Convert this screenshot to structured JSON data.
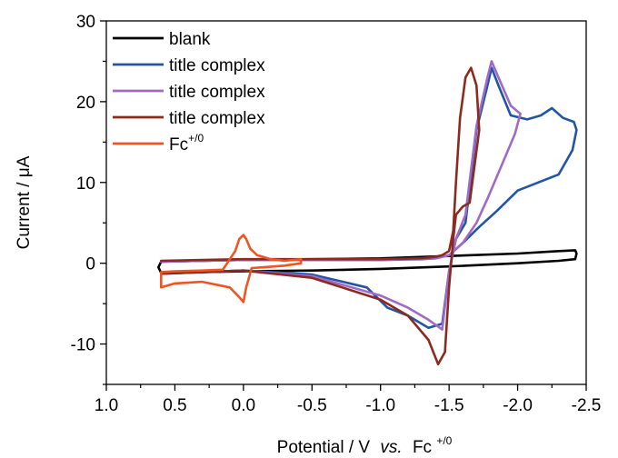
{
  "chart_data": {
    "type": "line",
    "xlabel": "Potential / V",
    "xlabel_italic": "vs.",
    "xlabel_ref": "Fc",
    "xlabel_ref_sup": "+/0",
    "ylabel": "Current / μA",
    "xlim": [
      1.0,
      -2.5
    ],
    "ylim": [
      -15,
      30
    ],
    "x_ticks": [
      1.0,
      0.5,
      0.0,
      -0.5,
      -1.0,
      -1.5,
      -2.0,
      -2.5
    ],
    "x_tick_labels": [
      "1.0",
      "0.5",
      "0.0",
      "-0.5",
      "-1.0",
      "-1.5",
      "-2.0",
      "-2.5"
    ],
    "y_ticks": [
      -10,
      0,
      10,
      20,
      30
    ],
    "y_tick_labels": [
      "-10",
      "0",
      "10",
      "20",
      "30"
    ],
    "grid": false,
    "legend_position": "top-left",
    "series": [
      {
        "name": "blank",
        "color": "#000000",
        "x": [
          0.6,
          0.3,
          0.0,
          -0.5,
          -1.0,
          -1.5,
          -2.0,
          -2.3,
          -2.42,
          -2.43,
          -2.42,
          -2.3,
          -2.0,
          -1.5,
          -1.0,
          -0.5,
          0.0,
          0.3,
          0.6,
          0.62,
          0.6
        ],
        "y": [
          -1.2,
          -1.1,
          -1.0,
          -0.9,
          -0.7,
          -0.4,
          0.0,
          0.3,
          0.5,
          1.2,
          1.6,
          1.5,
          1.2,
          0.9,
          0.6,
          0.5,
          0.4,
          0.3,
          0.2,
          -0.5,
          -1.2
        ]
      },
      {
        "name": "title complex",
        "color": "#2255a4",
        "x": [
          0.6,
          0.3,
          0.0,
          -0.5,
          -0.9,
          -1.05,
          -1.2,
          -1.35,
          -1.45,
          -1.5,
          -1.55,
          -1.62,
          -1.7,
          -1.78,
          -1.81,
          -1.86,
          -1.95,
          -2.07,
          -2.17,
          -2.25,
          -2.33,
          -2.41,
          -2.43,
          -2.4,
          -2.3,
          -2.15,
          -2.0,
          -1.85,
          -1.72,
          -1.6,
          -1.5,
          -1.45,
          -1.4,
          -1.3,
          -1.0,
          -0.5,
          0.0,
          0.3,
          0.6
        ],
        "y": [
          -1.3,
          -1.1,
          -0.9,
          -1.4,
          -3.0,
          -5.5,
          -6.5,
          -8.0,
          -7.5,
          -1.0,
          3.0,
          5.0,
          16.5,
          22.0,
          24.2,
          22.0,
          18.3,
          17.8,
          18.3,
          19.2,
          18.0,
          17.5,
          16.5,
          14.0,
          11.0,
          10.0,
          9.0,
          6.5,
          4.5,
          2.5,
          1.0,
          0.8,
          0.6,
          0.5,
          0.4,
          0.4,
          0.4,
          0.3,
          0.2
        ]
      },
      {
        "name": "title complex",
        "color": "#a06bc6",
        "x": [
          0.6,
          0.3,
          0.0,
          -0.5,
          -1.0,
          -1.2,
          -1.35,
          -1.45,
          -1.5,
          -1.55,
          -1.62,
          -1.7,
          -1.78,
          -1.81,
          -1.86,
          -1.95,
          -2.02,
          -1.98,
          -1.88,
          -1.78,
          -1.7,
          -1.6,
          -1.5,
          -1.4,
          -1.0,
          -0.5,
          0.0,
          0.3,
          0.6
        ],
        "y": [
          -1.3,
          -1.1,
          -0.9,
          -1.6,
          -4.0,
          -5.5,
          -7.0,
          -8.2,
          -1.0,
          3.0,
          6.0,
          17.0,
          23.0,
          25.0,
          23.0,
          19.5,
          18.5,
          16.0,
          12.0,
          8.0,
          5.0,
          2.5,
          1.0,
          0.6,
          0.4,
          0.4,
          0.4,
          0.3,
          0.2
        ]
      },
      {
        "name": "title complex",
        "color": "#8b2a1f",
        "x": [
          0.6,
          0.3,
          0.0,
          -0.5,
          -1.0,
          -1.2,
          -1.35,
          -1.42,
          -1.47,
          -1.5,
          -1.53,
          -1.55,
          -1.6,
          -1.65,
          -1.72,
          -1.7,
          -1.66,
          -1.62,
          -1.58,
          -1.55,
          -1.53,
          -1.5,
          -1.45,
          -1.4,
          -1.3,
          -1.0,
          -0.5,
          0.0,
          0.3,
          0.6
        ],
        "y": [
          -1.3,
          -1.1,
          -0.9,
          -1.8,
          -4.5,
          -6.5,
          -9.5,
          -12.5,
          -11.0,
          -3.0,
          3.0,
          6.0,
          7.0,
          7.5,
          16.5,
          22.0,
          24.2,
          23.0,
          18.0,
          10.0,
          4.0,
          1.5,
          1.0,
          0.8,
          0.6,
          0.5,
          0.5,
          0.5,
          0.4,
          0.3
        ]
      },
      {
        "name": "Fc",
        "name_sup": "+/0",
        "color": "#ee5522",
        "x": [
          0.6,
          0.5,
          0.3,
          0.15,
          0.06,
          0.03,
          0.0,
          -0.02,
          -0.05,
          -0.1,
          -0.2,
          -0.3,
          -0.42,
          -0.42,
          -0.3,
          -0.15,
          -0.06,
          -0.02,
          0.0,
          0.03,
          0.1,
          0.3,
          0.5,
          0.6,
          0.6
        ],
        "y": [
          -1.1,
          -1.0,
          -0.9,
          -0.8,
          1.5,
          3.0,
          3.5,
          3.0,
          1.8,
          1.0,
          0.5,
          0.3,
          0.5,
          0.0,
          -0.3,
          -0.5,
          -0.6,
          -3.0,
          -4.8,
          -4.2,
          -3.0,
          -2.3,
          -2.5,
          -3.0,
          -1.1
        ]
      }
    ]
  }
}
